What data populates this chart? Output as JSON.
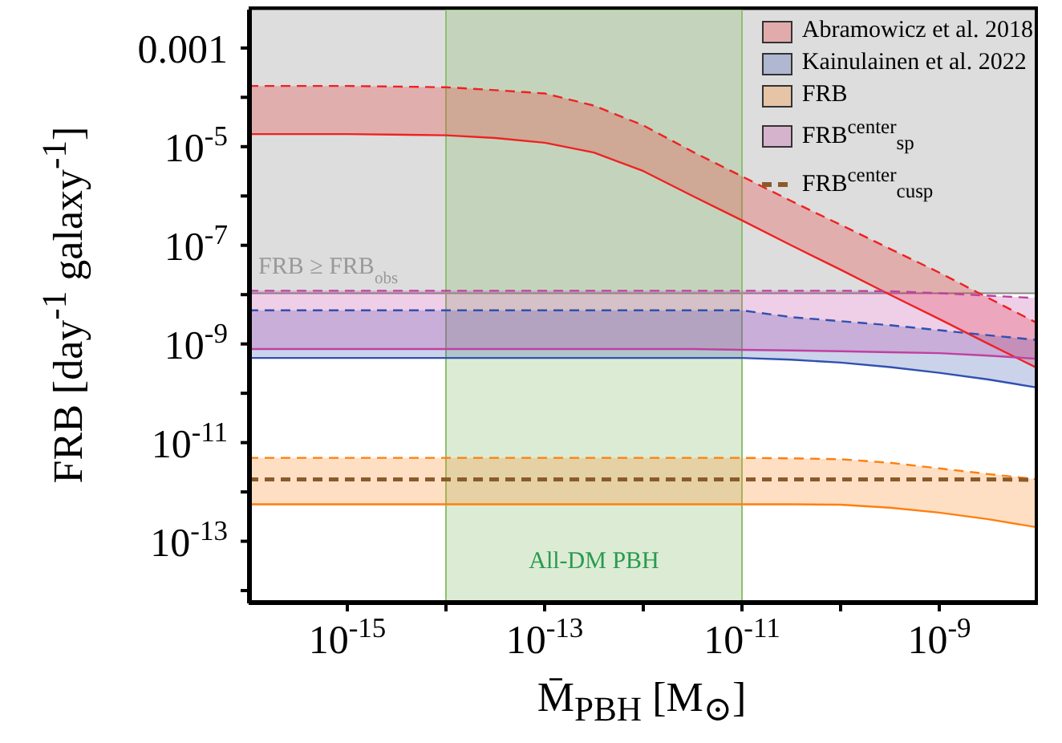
{
  "chart_data": {
    "type": "line",
    "xlabel": "M̄$_{PBH}$ [M$_{⊙}$]",
    "ylabel": "FRB [day$^{-1}$ galaxy$^{-1}$]",
    "x": [
      1e-16,
      1e-15,
      1e-14,
      3.16e-14,
      1e-13,
      3.16e-13,
      1e-12,
      3.16e-12,
      1e-11,
      3.16e-11,
      1e-10,
      3.16e-10,
      1e-09,
      3.16e-09,
      1e-08
    ],
    "xlim": [
      1e-16,
      1e-08
    ],
    "xticks": [
      {
        "value": 1e-15,
        "label": "10$^{-15}$"
      },
      {
        "value": 1e-14,
        "label": null
      },
      {
        "value": 1e-13,
        "label": "10$^{-13}$"
      },
      {
        "value": 1e-12,
        "label": null
      },
      {
        "value": 1e-11,
        "label": "10$^{-11}$"
      },
      {
        "value": 1e-10,
        "label": null
      },
      {
        "value": 1e-09,
        "label": "10$^{-9}$"
      }
    ],
    "ylim": [
      5.5e-15,
      0.006
    ],
    "yticks": [
      {
        "value": 1e-14,
        "label": null
      },
      {
        "value": 1e-13,
        "label": "10$^{-13}$"
      },
      {
        "value": 1e-12,
        "label": null
      },
      {
        "value": 1e-11,
        "label": "10$^{-11}$"
      },
      {
        "value": 1e-10,
        "label": null
      },
      {
        "value": 1e-09,
        "label": "10$^{-9}$"
      },
      {
        "value": 1e-08,
        "label": null
      },
      {
        "value": 1e-07,
        "label": "10$^{-7}$"
      },
      {
        "value": 1e-06,
        "label": null
      },
      {
        "value": 1e-05,
        "label": "10$^{-5}$"
      },
      {
        "value": 0.0001,
        "label": null
      },
      {
        "value": 0.001,
        "label": "0.001"
      }
    ],
    "log": "xy",
    "grid": false,
    "legend": "top right",
    "series": [
      {
        "name": "Abramowicz et al. 2018",
        "color": "#ee2222",
        "values": [
          1.8e-05,
          1.8e-05,
          1.7e-05,
          1.5e-05,
          1.2e-05,
          7.6e-06,
          3.2e-06,
          1e-06,
          3.2e-07,
          1e-07,
          3.2e-08,
          1e-08,
          3.2e-09,
          1e-09,
          3.2e-10
        ],
        "lower": [
          1.8e-05,
          1.8e-05,
          1.7e-05,
          1.5e-05,
          1.2e-05,
          7.6e-06,
          3.2e-06,
          1e-06,
          3.2e-07,
          1e-07,
          3.2e-08,
          1e-08,
          3.2e-09,
          1e-09,
          3.2e-10
        ],
        "upper": [
          0.00017,
          0.00017,
          0.00016,
          0.00014,
          0.00012,
          6.8e-05,
          2.7e-05,
          7.9e-06,
          2.5e-06,
          7.9e-07,
          2.6e-07,
          8.5e-08,
          2.8e-08,
          8.5e-09,
          2.6e-09
        ]
      },
      {
        "color": "#ee2222",
        "line_style": "dashed",
        "values": [
          0.00017,
          0.00017,
          0.00016,
          0.00014,
          0.00012,
          6.8e-05,
          2.7e-05,
          7.9e-06,
          2.5e-06,
          7.9e-07,
          2.6e-07,
          8.5e-08,
          2.8e-08,
          8.5e-09,
          2.6e-09
        ]
      },
      {
        "name": "Kainulainen et al. 2022",
        "color": "#3050b0",
        "values": [
          5.2e-10,
          5.2e-10,
          5.2e-10,
          5.2e-10,
          5.2e-10,
          5.2e-10,
          5.2e-10,
          5.2e-10,
          5.2e-10,
          4.8e-10,
          4.2e-10,
          3.4e-10,
          2.6e-10,
          1.9e-10,
          1.3e-10
        ],
        "lower": [
          5.2e-10,
          5.2e-10,
          5.2e-10,
          5.2e-10,
          5.2e-10,
          5.2e-10,
          5.2e-10,
          5.2e-10,
          5.2e-10,
          4.8e-10,
          4.2e-10,
          3.4e-10,
          2.6e-10,
          1.9e-10,
          1.3e-10
        ],
        "upper": [
          4.8e-09,
          4.8e-09,
          4.8e-09,
          4.8e-09,
          4.8e-09,
          4.8e-09,
          4.8e-09,
          4.8e-09,
          4.8e-09,
          3.5e-09,
          2.9e-09,
          2.4e-09,
          1.9e-09,
          1.5e-09,
          1.2e-09
        ]
      },
      {
        "color": "#3050b0",
        "line_style": "dashed",
        "values": [
          4.8e-09,
          4.8e-09,
          4.8e-09,
          4.8e-09,
          4.8e-09,
          4.8e-09,
          4.8e-09,
          4.8e-09,
          4.8e-09,
          3.5e-09,
          2.9e-09,
          2.4e-09,
          1.9e-09,
          1.5e-09,
          1.2e-09
        ]
      },
      {
        "name": "FRB",
        "color": "#ff7f0e",
        "values": [
          5.6e-13,
          5.6e-13,
          5.6e-13,
          5.6e-13,
          5.6e-13,
          5.6e-13,
          5.6e-13,
          5.6e-13,
          5.6e-13,
          5.6e-13,
          5.5e-13,
          4.8e-13,
          3.8e-13,
          2.8e-13,
          1.9e-13
        ],
        "lower": [
          5.6e-13,
          5.6e-13,
          5.6e-13,
          5.6e-13,
          5.6e-13,
          5.6e-13,
          5.6e-13,
          5.6e-13,
          5.6e-13,
          5.6e-13,
          5.5e-13,
          4.8e-13,
          3.8e-13,
          2.8e-13,
          1.9e-13
        ],
        "upper": [
          4.9e-12,
          4.9e-12,
          4.9e-12,
          4.9e-12,
          4.9e-12,
          4.9e-12,
          4.9e-12,
          4.9e-12,
          4.9e-12,
          4.8e-12,
          4.6e-12,
          3.9e-12,
          3e-12,
          2.3e-12,
          1.8e-12
        ]
      },
      {
        "color": "#ff7f0e",
        "line_style": "dashed",
        "values": [
          4.9e-12,
          4.9e-12,
          4.9e-12,
          4.9e-12,
          4.9e-12,
          4.9e-12,
          4.9e-12,
          4.9e-12,
          4.9e-12,
          4.8e-12,
          4.6e-12,
          3.9e-12,
          3e-12,
          2.3e-12,
          1.8e-12
        ]
      },
      {
        "name": "FRB$^{center}$$_{sp}$",
        "color": "#c040a0",
        "values": [
          7.9e-10,
          7.9e-10,
          7.9e-10,
          7.9e-10,
          7.9e-10,
          7.9e-10,
          7.9e-10,
          7.9e-10,
          7.6e-10,
          7.4e-10,
          7.1e-10,
          6.8e-10,
          6.5e-10,
          5.8e-10,
          5e-10
        ],
        "lower": [
          7.9e-10,
          7.9e-10,
          7.9e-10,
          7.9e-10,
          7.9e-10,
          7.9e-10,
          7.9e-10,
          7.9e-10,
          7.6e-10,
          7.4e-10,
          7.1e-10,
          6.8e-10,
          6.5e-10,
          5.8e-10,
          5e-10
        ],
        "upper": [
          1.2e-08,
          1.2e-08,
          1.2e-08,
          1.2e-08,
          1.2e-08,
          1.2e-08,
          1.2e-08,
          1.2e-08,
          1.2e-08,
          1.2e-08,
          1.2e-08,
          1.17e-08,
          1.07e-08,
          9.5e-09,
          8.5e-09
        ]
      },
      {
        "color": "#c040a0",
        "line_style": "dashed",
        "values": [
          1.2e-08,
          1.2e-08,
          1.2e-08,
          1.2e-08,
          1.2e-08,
          1.2e-08,
          1.2e-08,
          1.2e-08,
          1.2e-08,
          1.2e-08,
          1.2e-08,
          1.17e-08,
          1.07e-08,
          9.5e-09,
          8.5e-09
        ]
      },
      {
        "name": "FRB$^{center}$$_{cusp}$",
        "line_style": "dashed",
        "color": "#8b5a2b",
        "values": [
          1.8e-12,
          1.8e-12,
          1.8e-12,
          1.8e-12,
          1.8e-12,
          1.8e-12,
          1.8e-12,
          1.8e-12,
          1.8e-12,
          1.8e-12,
          1.8e-12,
          1.8e-12,
          1.8e-12,
          1.8e-12,
          1.75e-12
        ]
      }
    ],
    "bands": [
      {
        "axis": "y",
        "from": 1.07e-08,
        "to": 0.006,
        "label": "FRB ≥ FRB$_{obs}$",
        "color": "#b4b4b4"
      },
      {
        "axis": "x",
        "from": 1e-14,
        "to": 1e-11,
        "label": "All-DM PBH",
        "color": "#8cc070"
      }
    ]
  }
}
